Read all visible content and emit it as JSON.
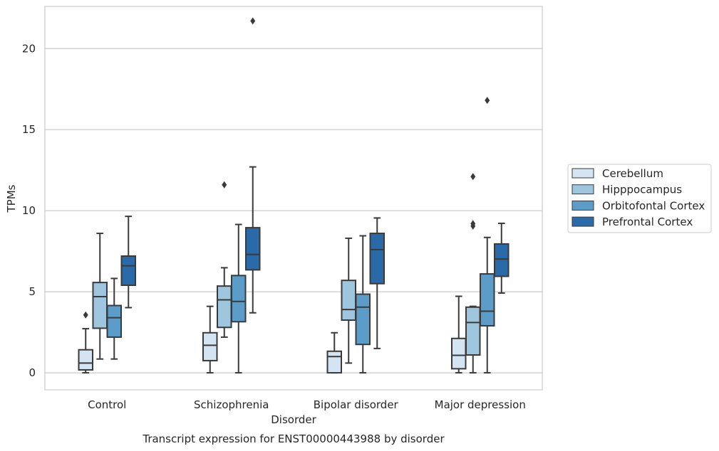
{
  "chart_data": {
    "type": "box",
    "title": "Transcript expression for ENST00000443988 by disorder",
    "xlabel": "Disorder",
    "ylabel": "TPMs",
    "ylim": [
      -1.05,
      22.6
    ],
    "yticks": [
      0,
      5,
      10,
      15,
      20
    ],
    "grid": "horizontal",
    "legend_position": "right",
    "categories": [
      "Control",
      "Schizophrenia",
      "Bipolar disorder",
      "Major depression"
    ],
    "series": [
      {
        "name": "Cerebellum",
        "color": "#d4e4f2",
        "boxes": [
          {
            "whislo": 0.0,
            "q1": 0.18,
            "med": 0.6,
            "q3": 1.42,
            "whishi": 2.72,
            "fliers": [
              3.57
            ]
          },
          {
            "whislo": 0.0,
            "q1": 0.75,
            "med": 1.7,
            "q3": 2.47,
            "whishi": 4.1,
            "fliers": []
          },
          {
            "whislo": 0.0,
            "q1": 0.0,
            "med": 1.0,
            "q3": 1.33,
            "whishi": 2.47,
            "fliers": []
          },
          {
            "whislo": 0.0,
            "q1": 0.25,
            "med": 1.08,
            "q3": 2.12,
            "whishi": 4.72,
            "fliers": []
          }
        ]
      },
      {
        "name": "Hipppocampus",
        "color": "#9ec6de",
        "boxes": [
          {
            "whislo": 0.85,
            "q1": 2.75,
            "med": 4.7,
            "q3": 5.57,
            "whishi": 8.6,
            "fliers": []
          },
          {
            "whislo": 2.2,
            "q1": 2.8,
            "med": 4.5,
            "q3": 5.35,
            "whishi": 6.48,
            "fliers": [
              11.6
            ]
          },
          {
            "whislo": 0.6,
            "q1": 3.25,
            "med": 3.9,
            "q3": 5.7,
            "whishi": 8.3,
            "fliers": []
          },
          {
            "whislo": 0.0,
            "q1": 1.1,
            "med": 3.1,
            "q3": 4.05,
            "whishi": 4.1,
            "fliers": [
              9.05,
              9.2,
              12.1
            ]
          }
        ]
      },
      {
        "name": "Orbitofontal Cortex",
        "color": "#5b9cc8",
        "boxes": [
          {
            "whislo": 0.85,
            "q1": 2.2,
            "med": 3.4,
            "q3": 4.15,
            "whishi": 5.82,
            "fliers": []
          },
          {
            "whislo": 0.0,
            "q1": 3.15,
            "med": 4.4,
            "q3": 6.0,
            "whishi": 9.15,
            "fliers": []
          },
          {
            "whislo": 0.0,
            "q1": 1.75,
            "med": 4.05,
            "q3": 4.85,
            "whishi": 8.45,
            "fliers": []
          },
          {
            "whislo": 0.0,
            "q1": 2.9,
            "med": 3.8,
            "q3": 6.1,
            "whishi": 8.35,
            "fliers": [
              16.8
            ]
          }
        ]
      },
      {
        "name": "Prefrontal Cortex",
        "color": "#2b6aa8",
        "boxes": [
          {
            "whislo": 4.02,
            "q1": 5.4,
            "med": 6.6,
            "q3": 7.2,
            "whishi": 9.65,
            "fliers": []
          },
          {
            "whislo": 3.7,
            "q1": 6.35,
            "med": 7.3,
            "q3": 8.95,
            "whishi": 12.7,
            "fliers": [
              21.7
            ]
          },
          {
            "whislo": 1.5,
            "q1": 5.5,
            "med": 7.6,
            "q3": 8.6,
            "whishi": 9.55,
            "fliers": []
          },
          {
            "whislo": 4.92,
            "q1": 5.95,
            "med": 7.02,
            "q3": 7.95,
            "whishi": 9.22,
            "fliers": []
          }
        ]
      }
    ]
  }
}
